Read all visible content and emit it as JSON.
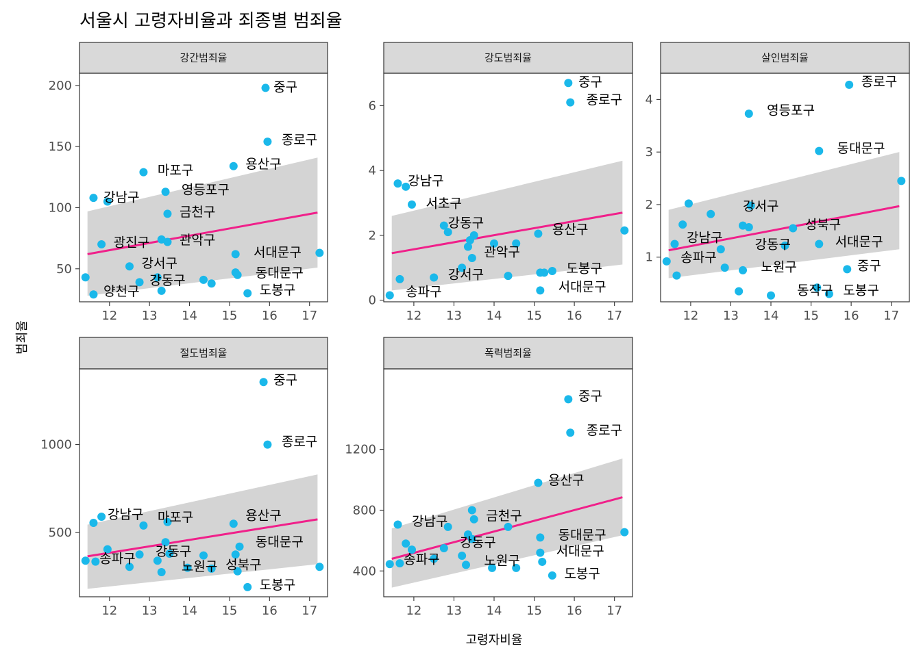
{
  "title": "서울시 고령자비율과 죄종별 범죄율",
  "x_axis_title": "고령자비율",
  "y_axis_title": "범죄율",
  "colors": {
    "point": "#1ab8ea",
    "fit_line": "#f0208a",
    "ci_band": "#cccccc",
    "strip": "#d9d9d9"
  },
  "chart_data": [
    {
      "type": "scatter",
      "facet": "강간범죄율",
      "xlim": [
        11.25,
        17.45
      ],
      "ylim": [
        23,
        210
      ],
      "x_ticks": [
        12,
        13,
        14,
        15,
        16,
        17
      ],
      "y_ticks": [
        50,
        100,
        150,
        200
      ],
      "fit": {
        "x0": 11.45,
        "y0": 62,
        "x1": 17.2,
        "y1": 96
      },
      "ci_band": {
        "upper0": 97,
        "lower0": 28,
        "upper1": 141,
        "lower1": 51
      },
      "points": [
        {
          "x": 15.9,
          "y": 198
        },
        {
          "x": 15.95,
          "y": 154
        },
        {
          "x": 15.1,
          "y": 134
        },
        {
          "x": 12.85,
          "y": 129
        },
        {
          "x": 13.4,
          "y": 113
        },
        {
          "x": 11.6,
          "y": 108
        },
        {
          "x": 11.95,
          "y": 105
        },
        {
          "x": 13.45,
          "y": 95
        },
        {
          "x": 11.8,
          "y": 70
        },
        {
          "x": 13.3,
          "y": 74
        },
        {
          "x": 13.45,
          "y": 72
        },
        {
          "x": 15.15,
          "y": 62
        },
        {
          "x": 17.25,
          "y": 63
        },
        {
          "x": 12.5,
          "y": 52
        },
        {
          "x": 15.15,
          "y": 47
        },
        {
          "x": 15.2,
          "y": 45
        },
        {
          "x": 11.4,
          "y": 43
        },
        {
          "x": 13.2,
          "y": 43
        },
        {
          "x": 14.35,
          "y": 41
        },
        {
          "x": 12.75,
          "y": 39
        },
        {
          "x": 14.55,
          "y": 38
        },
        {
          "x": 13.3,
          "y": 32
        },
        {
          "x": 11.6,
          "y": 29
        },
        {
          "x": 15.45,
          "y": 30
        }
      ],
      "labels": [
        {
          "text": "중구",
          "x": 16.1,
          "y": 199
        },
        {
          "text": "종로구",
          "x": 16.3,
          "y": 156
        },
        {
          "text": "용산구",
          "x": 15.4,
          "y": 136
        },
        {
          "text": "마포구",
          "x": 13.2,
          "y": 131
        },
        {
          "text": "영등포구",
          "x": 13.8,
          "y": 115
        },
        {
          "text": "강남구",
          "x": 11.85,
          "y": 109
        },
        {
          "text": "금천구",
          "x": 13.75,
          "y": 97
        },
        {
          "text": "광진구",
          "x": 12.1,
          "y": 72
        },
        {
          "text": "관악구",
          "x": 13.75,
          "y": 74
        },
        {
          "text": "서대문구",
          "x": 15.6,
          "y": 64
        },
        {
          "text": "강서구",
          "x": 12.8,
          "y": 55
        },
        {
          "text": "동대문구",
          "x": 15.65,
          "y": 47
        },
        {
          "text": "강동구",
          "x": 13.0,
          "y": 41
        },
        {
          "text": "양천구",
          "x": 11.85,
          "y": 32
        },
        {
          "text": "도봉구",
          "x": 15.75,
          "y": 33
        }
      ]
    },
    {
      "type": "scatter",
      "facet": "강도범죄율",
      "xlim": [
        11.25,
        17.45
      ],
      "ylim": [
        -0.05,
        7.0
      ],
      "x_ticks": [
        12,
        13,
        14,
        15,
        16,
        17
      ],
      "y_ticks": [
        0,
        2,
        4,
        6
      ],
      "fit": {
        "x0": 11.45,
        "y0": 1.45,
        "x1": 17.2,
        "y1": 2.7
      },
      "ci_band": {
        "upper0": 2.6,
        "lower0": 0.3,
        "upper1": 4.3,
        "lower1": 1.1
      },
      "points": [
        {
          "x": 15.85,
          "y": 6.7
        },
        {
          "x": 15.9,
          "y": 6.1
        },
        {
          "x": 11.6,
          "y": 3.6
        },
        {
          "x": 11.8,
          "y": 3.5
        },
        {
          "x": 11.95,
          "y": 2.95
        },
        {
          "x": 12.75,
          "y": 2.3
        },
        {
          "x": 12.85,
          "y": 2.1
        },
        {
          "x": 13.5,
          "y": 2.0
        },
        {
          "x": 13.4,
          "y": 1.85
        },
        {
          "x": 13.35,
          "y": 1.65
        },
        {
          "x": 14.55,
          "y": 1.75
        },
        {
          "x": 14.0,
          "y": 1.75
        },
        {
          "x": 15.1,
          "y": 2.05
        },
        {
          "x": 17.25,
          "y": 2.15
        },
        {
          "x": 13.45,
          "y": 1.3
        },
        {
          "x": 13.2,
          "y": 1.0
        },
        {
          "x": 15.15,
          "y": 0.85
        },
        {
          "x": 15.25,
          "y": 0.85
        },
        {
          "x": 15.45,
          "y": 0.9
        },
        {
          "x": 12.5,
          "y": 0.7
        },
        {
          "x": 14.35,
          "y": 0.75
        },
        {
          "x": 11.65,
          "y": 0.65
        },
        {
          "x": 15.15,
          "y": 0.3
        },
        {
          "x": 11.4,
          "y": 0.15
        }
      ],
      "labels": [
        {
          "text": "중구",
          "x": 16.1,
          "y": 6.75
        },
        {
          "text": "종로구",
          "x": 16.3,
          "y": 6.2
        },
        {
          "text": "강남구",
          "x": 11.85,
          "y": 3.7
        },
        {
          "text": "서초구",
          "x": 12.3,
          "y": 3.0
        },
        {
          "text": "강동구",
          "x": 12.85,
          "y": 2.4
        },
        {
          "text": "용산구",
          "x": 15.45,
          "y": 2.2
        },
        {
          "text": "관악구",
          "x": 13.75,
          "y": 1.5
        },
        {
          "text": "도봉구",
          "x": 15.8,
          "y": 1.0
        },
        {
          "text": "강서구",
          "x": 12.85,
          "y": 0.8
        },
        {
          "text": "서대문구",
          "x": 15.6,
          "y": 0.42
        },
        {
          "text": "송파구",
          "x": 11.8,
          "y": 0.28
        }
      ]
    },
    {
      "type": "scatter",
      "facet": "살인범죄율",
      "xlim": [
        11.25,
        17.45
      ],
      "ylim": [
        0.15,
        4.5
      ],
      "x_ticks": [
        12,
        13,
        14,
        15,
        16,
        17
      ],
      "y_ticks": [
        1,
        2,
        3,
        4
      ],
      "fit": {
        "x0": 11.45,
        "y0": 1.13,
        "x1": 17.2,
        "y1": 1.97
      },
      "ci_band": {
        "upper0": 1.9,
        "lower0": 0.6,
        "upper1": 3.0,
        "lower1": 1.15
      },
      "points": [
        {
          "x": 15.95,
          "y": 4.28
        },
        {
          "x": 13.45,
          "y": 3.73
        },
        {
          "x": 15.2,
          "y": 3.02
        },
        {
          "x": 17.25,
          "y": 2.45
        },
        {
          "x": 11.95,
          "y": 2.02
        },
        {
          "x": 13.5,
          "y": 1.98
        },
        {
          "x": 12.5,
          "y": 1.82
        },
        {
          "x": 11.8,
          "y": 1.62
        },
        {
          "x": 13.3,
          "y": 1.6
        },
        {
          "x": 13.45,
          "y": 1.57
        },
        {
          "x": 14.55,
          "y": 1.55
        },
        {
          "x": 11.6,
          "y": 1.25
        },
        {
          "x": 14.35,
          "y": 1.22
        },
        {
          "x": 15.2,
          "y": 1.25
        },
        {
          "x": 12.75,
          "y": 1.15
        },
        {
          "x": 11.4,
          "y": 0.92
        },
        {
          "x": 12.85,
          "y": 0.8
        },
        {
          "x": 13.3,
          "y": 0.75
        },
        {
          "x": 15.9,
          "y": 0.77
        },
        {
          "x": 11.65,
          "y": 0.65
        },
        {
          "x": 15.15,
          "y": 0.42
        },
        {
          "x": 13.2,
          "y": 0.35
        },
        {
          "x": 15.45,
          "y": 0.3
        },
        {
          "x": 14.0,
          "y": 0.27
        }
      ],
      "labels": [
        {
          "text": "종로구",
          "x": 16.25,
          "y": 4.35
        },
        {
          "text": "영등포구",
          "x": 13.9,
          "y": 3.8
        },
        {
          "text": "동대문구",
          "x": 15.65,
          "y": 3.08
        },
        {
          "text": "강서구",
          "x": 13.3,
          "y": 1.98
        },
        {
          "text": "성북구",
          "x": 14.85,
          "y": 1.63
        },
        {
          "text": "강남구",
          "x": 11.9,
          "y": 1.38
        },
        {
          "text": "서대문구",
          "x": 15.6,
          "y": 1.3
        },
        {
          "text": "강동구",
          "x": 13.6,
          "y": 1.25
        },
        {
          "text": "송파구",
          "x": 11.75,
          "y": 1.0
        },
        {
          "text": "중구",
          "x": 16.15,
          "y": 0.85
        },
        {
          "text": "노원구",
          "x": 13.75,
          "y": 0.82
        },
        {
          "text": "동작구",
          "x": 14.65,
          "y": 0.38
        },
        {
          "text": "도봉구",
          "x": 15.8,
          "y": 0.38
        }
      ]
    },
    {
      "type": "scatter",
      "facet": "절도범죄율",
      "xlim": [
        11.25,
        17.45
      ],
      "ylim": [
        135,
        1430
      ],
      "x_ticks": [
        12,
        13,
        14,
        15,
        16,
        17
      ],
      "y_ticks": [
        500,
        1000
      ],
      "fit": {
        "x0": 11.45,
        "y0": 365,
        "x1": 17.2,
        "y1": 575
      },
      "ci_band": {
        "upper0": 545,
        "lower0": 180,
        "upper1": 830,
        "lower1": 320
      },
      "points": [
        {
          "x": 15.85,
          "y": 1355
        },
        {
          "x": 15.95,
          "y": 1000
        },
        {
          "x": 11.8,
          "y": 590
        },
        {
          "x": 11.6,
          "y": 555
        },
        {
          "x": 13.45,
          "y": 560
        },
        {
          "x": 12.85,
          "y": 540
        },
        {
          "x": 15.1,
          "y": 550
        },
        {
          "x": 11.95,
          "y": 405
        },
        {
          "x": 13.4,
          "y": 445
        },
        {
          "x": 15.25,
          "y": 420
        },
        {
          "x": 13.5,
          "y": 380
        },
        {
          "x": 12.75,
          "y": 375
        },
        {
          "x": 14.35,
          "y": 370
        },
        {
          "x": 15.15,
          "y": 375
        },
        {
          "x": 11.4,
          "y": 340
        },
        {
          "x": 11.65,
          "y": 335
        },
        {
          "x": 13.2,
          "y": 340
        },
        {
          "x": 12.5,
          "y": 305
        },
        {
          "x": 13.95,
          "y": 300
        },
        {
          "x": 14.55,
          "y": 295
        },
        {
          "x": 17.25,
          "y": 305
        },
        {
          "x": 13.3,
          "y": 275
        },
        {
          "x": 15.2,
          "y": 280
        },
        {
          "x": 15.45,
          "y": 190
        }
      ],
      "labels": [
        {
          "text": "중구",
          "x": 16.1,
          "y": 1370
        },
        {
          "text": "종로구",
          "x": 16.3,
          "y": 1020
        },
        {
          "text": "강남구",
          "x": 11.95,
          "y": 605
        },
        {
          "text": "마포구",
          "x": 13.2,
          "y": 590
        },
        {
          "text": "용산구",
          "x": 15.4,
          "y": 600
        },
        {
          "text": "동대문구",
          "x": 15.65,
          "y": 450
        },
        {
          "text": "강동구",
          "x": 13.15,
          "y": 395
        },
        {
          "text": "송파구",
          "x": 11.75,
          "y": 355
        },
        {
          "text": "노원구",
          "x": 13.8,
          "y": 310
        },
        {
          "text": "성북구",
          "x": 14.9,
          "y": 320
        },
        {
          "text": "도봉구",
          "x": 15.75,
          "y": 205
        }
      ]
    },
    {
      "type": "scatter",
      "facet": "폭력범죄율",
      "xlim": [
        11.25,
        17.45
      ],
      "ylim": [
        230,
        1730
      ],
      "x_ticks": [
        12,
        13,
        14,
        15,
        16,
        17
      ],
      "y_ticks": [
        400,
        800,
        1200
      ],
      "fit": {
        "x0": 11.45,
        "y0": 480,
        "x1": 17.2,
        "y1": 885
      },
      "ci_band": {
        "upper0": 680,
        "lower0": 290,
        "upper1": 1140,
        "lower1": 635
      },
      "points": [
        {
          "x": 15.85,
          "y": 1530
        },
        {
          "x": 15.9,
          "y": 1310
        },
        {
          "x": 15.1,
          "y": 980
        },
        {
          "x": 13.45,
          "y": 800
        },
        {
          "x": 11.6,
          "y": 705
        },
        {
          "x": 13.5,
          "y": 740
        },
        {
          "x": 12.85,
          "y": 690
        },
        {
          "x": 14.35,
          "y": 690
        },
        {
          "x": 13.35,
          "y": 640
        },
        {
          "x": 11.8,
          "y": 580
        },
        {
          "x": 13.45,
          "y": 610
        },
        {
          "x": 15.15,
          "y": 620
        },
        {
          "x": 17.25,
          "y": 655
        },
        {
          "x": 11.95,
          "y": 540
        },
        {
          "x": 12.75,
          "y": 550
        },
        {
          "x": 15.15,
          "y": 520
        },
        {
          "x": 13.2,
          "y": 500
        },
        {
          "x": 12.5,
          "y": 480
        },
        {
          "x": 11.4,
          "y": 445
        },
        {
          "x": 11.65,
          "y": 450
        },
        {
          "x": 13.3,
          "y": 440
        },
        {
          "x": 13.95,
          "y": 420
        },
        {
          "x": 14.55,
          "y": 420
        },
        {
          "x": 15.2,
          "y": 460
        },
        {
          "x": 15.45,
          "y": 370
        }
      ],
      "labels": [
        {
          "text": "중구",
          "x": 16.1,
          "y": 1555
        },
        {
          "text": "종로구",
          "x": 16.3,
          "y": 1330
        },
        {
          "text": "용산구",
          "x": 15.35,
          "y": 1000
        },
        {
          "text": "금천구",
          "x": 13.8,
          "y": 765
        },
        {
          "text": "강남구",
          "x": 11.95,
          "y": 730
        },
        {
          "text": "동대문구",
          "x": 15.6,
          "y": 640
        },
        {
          "text": "강동구",
          "x": 13.15,
          "y": 590
        },
        {
          "text": "서대문구",
          "x": 15.55,
          "y": 535
        },
        {
          "text": "송파구",
          "x": 11.75,
          "y": 480
        },
        {
          "text": "노원구",
          "x": 13.75,
          "y": 470
        },
        {
          "text": "도봉구",
          "x": 15.75,
          "y": 385
        }
      ]
    }
  ]
}
